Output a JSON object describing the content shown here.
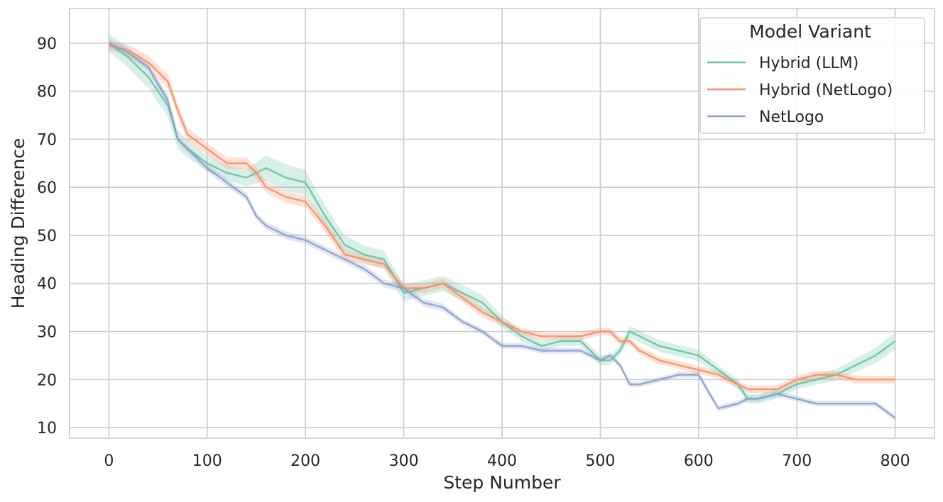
{
  "chart_data": {
    "type": "line",
    "title": "",
    "xlabel": "Step Number",
    "ylabel": "Heading Difference",
    "xlim": [
      -40,
      840
    ],
    "ylim": [
      7.8,
      97.2
    ],
    "xticks": [
      0,
      100,
      200,
      300,
      400,
      500,
      600,
      700,
      800
    ],
    "yticks": [
      10,
      20,
      30,
      40,
      50,
      60,
      70,
      80,
      90
    ],
    "grid": true,
    "legend": {
      "title": "Model Variant",
      "placement": "top-right"
    },
    "x": [
      0,
      20,
      40,
      60,
      70,
      80,
      100,
      120,
      140,
      150,
      160,
      180,
      200,
      220,
      240,
      260,
      280,
      300,
      320,
      340,
      360,
      380,
      400,
      420,
      440,
      460,
      480,
      500,
      510,
      520,
      530,
      540,
      560,
      580,
      600,
      620,
      640,
      650,
      660,
      680,
      700,
      720,
      740,
      760,
      780,
      800
    ],
    "series": [
      {
        "name": "Hybrid (LLM)",
        "color": "#66c2a5",
        "values": [
          90,
          87,
          83,
          77,
          70,
          68,
          65,
          63,
          62,
          63,
          64,
          62,
          61,
          54,
          48,
          46,
          45,
          38,
          39,
          40,
          38,
          36,
          32,
          29,
          27,
          28,
          28,
          24,
          24,
          26,
          30,
          29,
          27,
          26,
          25,
          22,
          19,
          16,
          16,
          17,
          19,
          20,
          21,
          23,
          25,
          28
        ],
        "band": [
          1.8,
          2.2,
          2.4,
          2.4,
          2.0,
          1.8,
          1.6,
          1.6,
          1.8,
          2.2,
          2.6,
          2.8,
          2.6,
          2.2,
          2.0,
          1.8,
          1.8,
          1.8,
          1.6,
          1.6,
          1.6,
          1.6,
          1.2,
          1.0,
          1.0,
          1.0,
          1.0,
          1.0,
          1.0,
          1.0,
          1.2,
          1.2,
          1.2,
          1.2,
          1.2,
          1.0,
          1.0,
          1.0,
          1.0,
          1.0,
          1.0,
          1.0,
          1.2,
          1.4,
          1.6,
          1.8
        ]
      },
      {
        "name": "Hybrid (NetLogo)",
        "color": "#fc8d62",
        "values": [
          89.5,
          88.5,
          86,
          82,
          76,
          71,
          68,
          65,
          65,
          63,
          60,
          58,
          57,
          52,
          46,
          45,
          44,
          39,
          39,
          40,
          37,
          34,
          32,
          30,
          29,
          29,
          29,
          30,
          30,
          28,
          28,
          26,
          24,
          23,
          22,
          21,
          19,
          18,
          18,
          18,
          20,
          21,
          21,
          20,
          20,
          20
        ],
        "band": [
          1.0,
          1.2,
          1.4,
          1.4,
          1.4,
          1.4,
          1.2,
          1.2,
          1.2,
          1.2,
          1.2,
          1.2,
          1.2,
          1.2,
          1.2,
          1.0,
          1.0,
          1.0,
          1.0,
          1.0,
          1.0,
          1.0,
          0.8,
          0.8,
          0.8,
          0.8,
          0.8,
          0.8,
          0.8,
          0.8,
          0.8,
          0.8,
          0.8,
          0.8,
          0.8,
          0.8,
          0.8,
          0.8,
          0.8,
          0.8,
          0.8,
          0.8,
          0.8,
          0.8,
          0.8,
          0.8
        ]
      },
      {
        "name": "NetLogo",
        "color": "#8da0cb",
        "values": [
          90,
          88,
          85,
          78,
          70,
          68,
          64,
          61,
          58,
          54,
          52,
          50,
          49,
          47,
          45,
          43,
          40,
          39,
          36,
          35,
          32,
          30,
          27,
          27,
          26,
          26,
          26,
          24,
          25,
          23,
          19,
          19,
          20,
          21,
          21,
          14,
          15,
          16,
          16,
          17,
          16,
          15,
          15,
          15,
          15,
          12
        ],
        "band": [
          0.8,
          0.8,
          0.8,
          0.8,
          0.8,
          0.8,
          0.8,
          0.8,
          0.8,
          0.8,
          0.8,
          0.8,
          0.8,
          0.8,
          0.8,
          0.8,
          0.8,
          0.8,
          0.8,
          0.8,
          0.6,
          0.6,
          0.6,
          0.6,
          0.6,
          0.6,
          0.6,
          0.6,
          0.6,
          0.6,
          0.6,
          0.6,
          0.6,
          0.6,
          0.6,
          0.6,
          0.6,
          0.6,
          0.6,
          0.6,
          0.6,
          0.6,
          0.6,
          0.6,
          0.6,
          0.6
        ]
      }
    ]
  }
}
